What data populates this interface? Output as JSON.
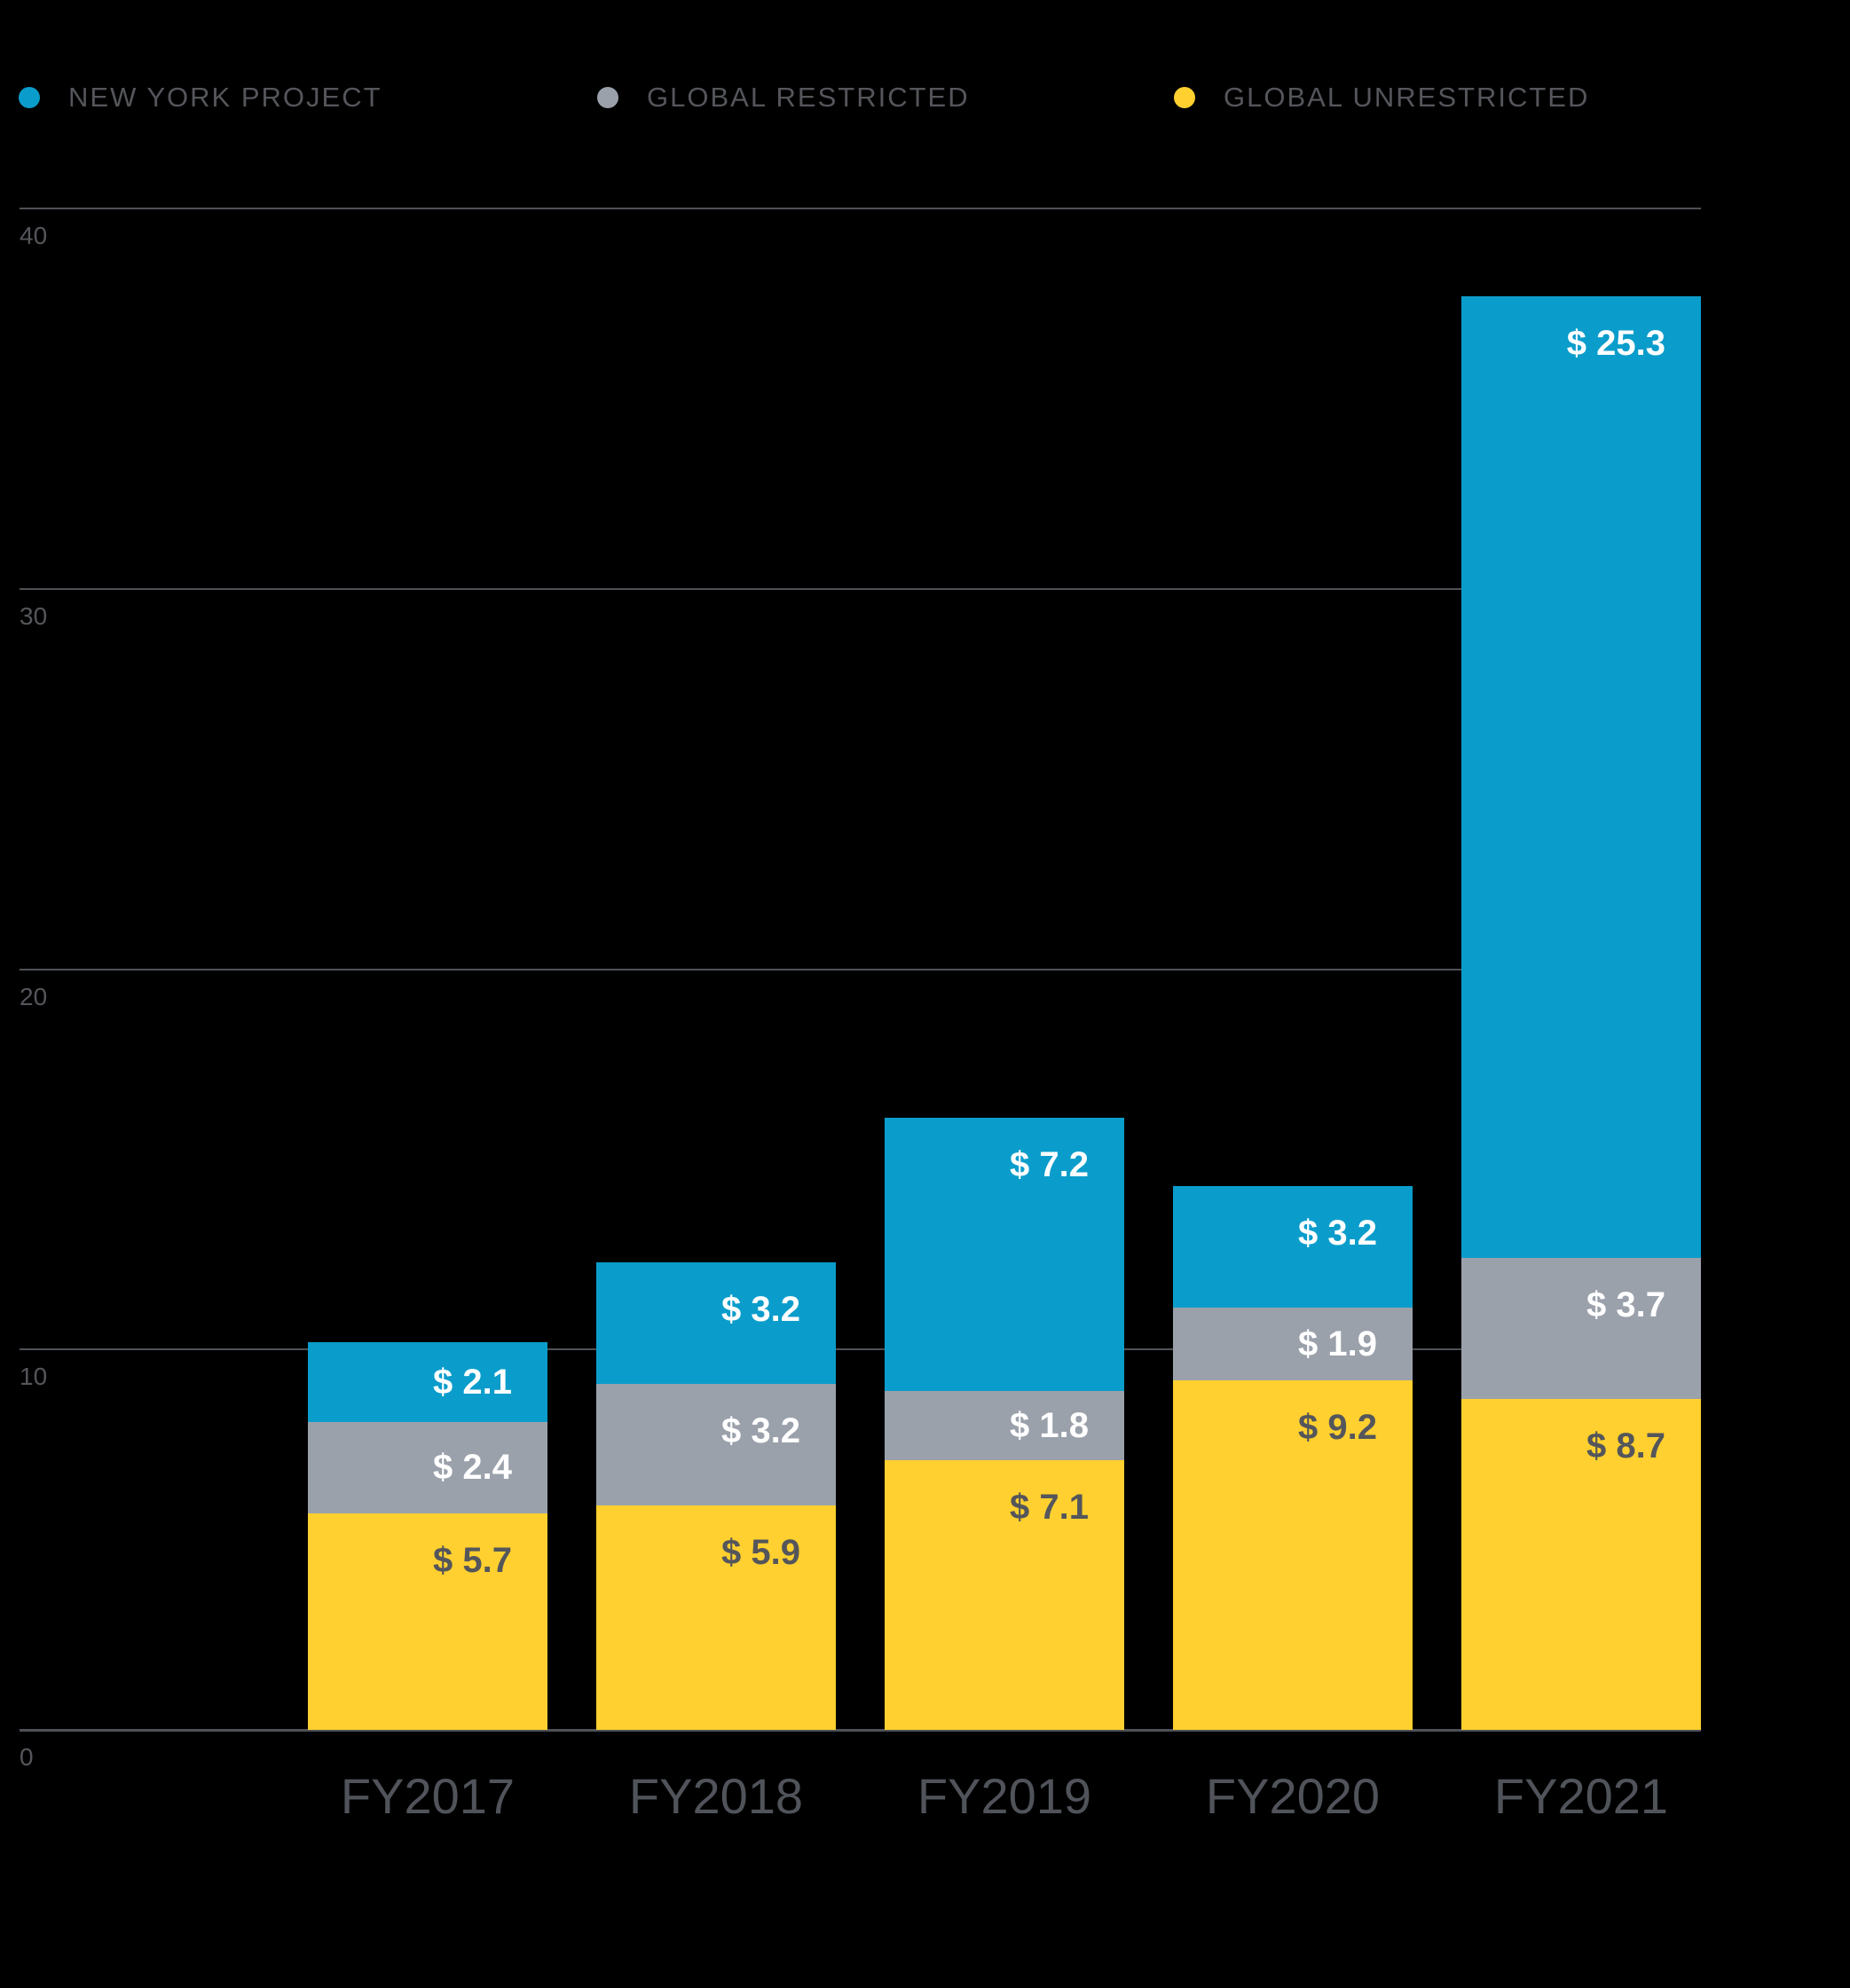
{
  "legend": {
    "items": [
      {
        "label": "NEW YORK PROJECT",
        "color": "#0A9DCB"
      },
      {
        "label": "GLOBAL RESTRICTED",
        "color": "#9BA1AB"
      },
      {
        "label": "GLOBAL UNRESTRICTED",
        "color": "#FFD02F"
      }
    ]
  },
  "chart_data": {
    "type": "bar",
    "stacked": true,
    "categories": [
      "FY2017",
      "FY2018",
      "FY2019",
      "FY2020",
      "FY2021"
    ],
    "series": [
      {
        "name": "GLOBAL UNRESTRICTED",
        "color": "#FFD02F",
        "label_color": "#54565B",
        "values": [
          5.7,
          5.9,
          7.1,
          9.2,
          8.7
        ]
      },
      {
        "name": "GLOBAL RESTRICTED",
        "color": "#9BA1AB",
        "label_color": "#FFFFFF",
        "values": [
          2.4,
          3.2,
          1.8,
          1.9,
          3.7
        ]
      },
      {
        "name": "NEW YORK PROJECT",
        "color": "#0A9DCB",
        "label_color": "#FFFFFF",
        "values": [
          2.1,
          3.2,
          7.2,
          3.2,
          25.3
        ]
      }
    ],
    "value_prefix": "$ ",
    "value_labels": {
      "GLOBAL UNRESTRICTED": [
        "$ 5.7",
        "$ 5.9",
        "$ 7.1",
        "$ 9.2",
        "$ 8.7"
      ],
      "GLOBAL RESTRICTED": [
        "$ 2.4",
        "$ 3.2",
        "$ 1.8",
        "$ 1.9",
        "$ 3.7"
      ],
      "NEW YORK PROJECT": [
        "$ 2.1",
        "$ 3.2",
        "$ 7.2",
        "$ 3.2",
        "$ 25.3"
      ]
    },
    "yticks": [
      "40",
      "30",
      "20",
      "10",
      "0"
    ],
    "ytick_values": [
      40,
      30,
      20,
      10,
      0
    ],
    "ylim": [
      0,
      40
    ],
    "grid": true,
    "legend_position": "top"
  },
  "colors": {
    "background": "#000000",
    "gridline": "#4E5157",
    "axis_text": "#54565B"
  }
}
